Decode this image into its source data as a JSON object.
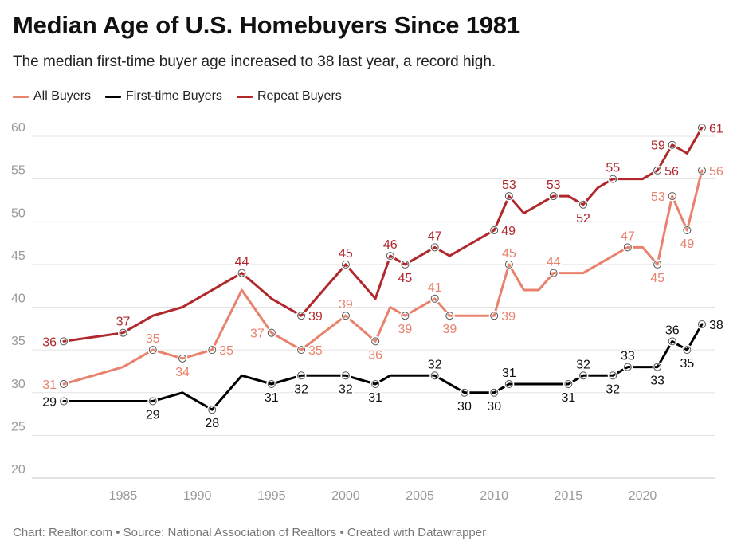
{
  "header": {
    "title": "Median Age of U.S. Homebuyers Since 1981",
    "subtitle": "The median first-time buyer age increased to 38 last year, a record high."
  },
  "footer": {
    "credit": "Chart: Realtor.com • Source: National Association of Realtors • Created with Datawrapper"
  },
  "chart_data": {
    "type": "line",
    "title": "Median Age of U.S. Homebuyers Since 1981",
    "subtitle": "The median first-time buyer age increased to 38 last year, a record high.",
    "xlabel": "",
    "ylabel": "",
    "xlim": [
      1981,
      2024
    ],
    "ylim": [
      20,
      62
    ],
    "x_ticks": [
      1985,
      1990,
      1995,
      2000,
      2005,
      2010,
      2015,
      2020
    ],
    "y_ticks": [
      20,
      25,
      30,
      35,
      40,
      45,
      50,
      55,
      60
    ],
    "grid": true,
    "legend": "top-left",
    "series": [
      {
        "name": "All Buyers",
        "color": "#e8826d",
        "points": [
          [
            1981,
            31
          ],
          [
            1985,
            33
          ],
          [
            1987,
            35
          ],
          [
            1989,
            34
          ],
          [
            1991,
            35
          ],
          [
            1993,
            42
          ],
          [
            1995,
            37
          ],
          [
            1997,
            35
          ],
          [
            2000,
            39
          ],
          [
            2002,
            36
          ],
          [
            2003,
            40
          ],
          [
            2004,
            39
          ],
          [
            2006,
            41
          ],
          [
            2007,
            39
          ],
          [
            2010,
            39
          ],
          [
            2011,
            45
          ],
          [
            2012,
            42
          ],
          [
            2013,
            42
          ],
          [
            2014,
            44
          ],
          [
            2016,
            44
          ],
          [
            2019,
            47
          ],
          [
            2020,
            47
          ],
          [
            2021,
            45
          ],
          [
            2022,
            53
          ],
          [
            2023,
            49
          ],
          [
            2024,
            56
          ]
        ],
        "labels": [
          {
            "x": 1981,
            "y": 31,
            "text": "31",
            "pos": "left"
          },
          {
            "x": 1987,
            "y": 35,
            "text": "35",
            "pos": "above"
          },
          {
            "x": 1989,
            "y": 34,
            "text": "34",
            "pos": "below"
          },
          {
            "x": 1991,
            "y": 35,
            "text": "35",
            "pos": "right"
          },
          {
            "x": 1995,
            "y": 37,
            "text": "37",
            "pos": "left"
          },
          {
            "x": 1997,
            "y": 35,
            "text": "35",
            "pos": "right"
          },
          {
            "x": 2000,
            "y": 39,
            "text": "39",
            "pos": "above"
          },
          {
            "x": 2002,
            "y": 36,
            "text": "36",
            "pos": "below"
          },
          {
            "x": 2004,
            "y": 39,
            "text": "39",
            "pos": "below"
          },
          {
            "x": 2006,
            "y": 41,
            "text": "41",
            "pos": "above"
          },
          {
            "x": 2007,
            "y": 39,
            "text": "39",
            "pos": "below"
          },
          {
            "x": 2010,
            "y": 39,
            "text": "39",
            "pos": "right"
          },
          {
            "x": 2011,
            "y": 45,
            "text": "45",
            "pos": "above"
          },
          {
            "x": 2014,
            "y": 44,
            "text": "44",
            "pos": "above"
          },
          {
            "x": 2019,
            "y": 47,
            "text": "47",
            "pos": "above"
          },
          {
            "x": 2021,
            "y": 45,
            "text": "45",
            "pos": "below"
          },
          {
            "x": 2022,
            "y": 53,
            "text": "53",
            "pos": "left"
          },
          {
            "x": 2023,
            "y": 49,
            "text": "49",
            "pos": "below"
          },
          {
            "x": 2024,
            "y": 56,
            "text": "56",
            "pos": "right"
          }
        ]
      },
      {
        "name": "First-time Buyers",
        "color": "#000000",
        "points": [
          [
            1981,
            29
          ],
          [
            1987,
            29
          ],
          [
            1989,
            30
          ],
          [
            1991,
            28
          ],
          [
            1993,
            32
          ],
          [
            1995,
            31
          ],
          [
            1997,
            32
          ],
          [
            2000,
            32
          ],
          [
            2002,
            31
          ],
          [
            2003,
            32
          ],
          [
            2006,
            32
          ],
          [
            2008,
            30
          ],
          [
            2010,
            30
          ],
          [
            2011,
            31
          ],
          [
            2015,
            31
          ],
          [
            2016,
            32
          ],
          [
            2018,
            32
          ],
          [
            2019,
            33
          ],
          [
            2021,
            33
          ],
          [
            2022,
            36
          ],
          [
            2023,
            35
          ],
          [
            2024,
            38
          ]
        ],
        "labels": [
          {
            "x": 1981,
            "y": 29,
            "text": "29",
            "pos": "left"
          },
          {
            "x": 1987,
            "y": 29,
            "text": "29",
            "pos": "below"
          },
          {
            "x": 1991,
            "y": 28,
            "text": "28",
            "pos": "below"
          },
          {
            "x": 1995,
            "y": 31,
            "text": "31",
            "pos": "below"
          },
          {
            "x": 1997,
            "y": 32,
            "text": "32",
            "pos": "below"
          },
          {
            "x": 2000,
            "y": 32,
            "text": "32",
            "pos": "below"
          },
          {
            "x": 2002,
            "y": 31,
            "text": "31",
            "pos": "below"
          },
          {
            "x": 2006,
            "y": 32,
            "text": "32",
            "pos": "above"
          },
          {
            "x": 2008,
            "y": 30,
            "text": "30",
            "pos": "below"
          },
          {
            "x": 2010,
            "y": 30,
            "text": "30",
            "pos": "below"
          },
          {
            "x": 2011,
            "y": 31,
            "text": "31",
            "pos": "above"
          },
          {
            "x": 2015,
            "y": 31,
            "text": "31",
            "pos": "below"
          },
          {
            "x": 2016,
            "y": 32,
            "text": "32",
            "pos": "above"
          },
          {
            "x": 2018,
            "y": 32,
            "text": "32",
            "pos": "below"
          },
          {
            "x": 2019,
            "y": 33,
            "text": "33",
            "pos": "above"
          },
          {
            "x": 2021,
            "y": 33,
            "text": "33",
            "pos": "below"
          },
          {
            "x": 2022,
            "y": 36,
            "text": "36",
            "pos": "above"
          },
          {
            "x": 2023,
            "y": 35,
            "text": "35",
            "pos": "below"
          },
          {
            "x": 2024,
            "y": 38,
            "text": "38",
            "pos": "right"
          }
        ]
      },
      {
        "name": "Repeat Buyers",
        "color": "#b0282c",
        "points": [
          [
            1981,
            36
          ],
          [
            1985,
            37
          ],
          [
            1987,
            39
          ],
          [
            1989,
            40
          ],
          [
            1993,
            44
          ],
          [
            1995,
            41
          ],
          [
            1997,
            39
          ],
          [
            2000,
            45
          ],
          [
            2002,
            41
          ],
          [
            2003,
            46
          ],
          [
            2004,
            45
          ],
          [
            2006,
            47
          ],
          [
            2007,
            46
          ],
          [
            2010,
            49
          ],
          [
            2011,
            53
          ],
          [
            2012,
            51
          ],
          [
            2014,
            53
          ],
          [
            2015,
            53
          ],
          [
            2016,
            52
          ],
          [
            2017,
            54
          ],
          [
            2018,
            55
          ],
          [
            2020,
            55
          ],
          [
            2021,
            56
          ],
          [
            2022,
            59
          ],
          [
            2023,
            58
          ],
          [
            2024,
            61
          ]
        ],
        "labels": [
          {
            "x": 1981,
            "y": 36,
            "text": "36",
            "pos": "left"
          },
          {
            "x": 1985,
            "y": 37,
            "text": "37",
            "pos": "above"
          },
          {
            "x": 1993,
            "y": 44,
            "text": "44",
            "pos": "above"
          },
          {
            "x": 1997,
            "y": 39,
            "text": "39",
            "pos": "right"
          },
          {
            "x": 2000,
            "y": 45,
            "text": "45",
            "pos": "above"
          },
          {
            "x": 2003,
            "y": 46,
            "text": "46",
            "pos": "above"
          },
          {
            "x": 2004,
            "y": 45,
            "text": "45",
            "pos": "below"
          },
          {
            "x": 2006,
            "y": 47,
            "text": "47",
            "pos": "above"
          },
          {
            "x": 2010,
            "y": 49,
            "text": "49",
            "pos": "right"
          },
          {
            "x": 2011,
            "y": 53,
            "text": "53",
            "pos": "above"
          },
          {
            "x": 2014,
            "y": 53,
            "text": "53",
            "pos": "above"
          },
          {
            "x": 2016,
            "y": 52,
            "text": "52",
            "pos": "below"
          },
          {
            "x": 2018,
            "y": 55,
            "text": "55",
            "pos": "above"
          },
          {
            "x": 2021,
            "y": 56,
            "text": "56",
            "pos": "right"
          },
          {
            "x": 2022,
            "y": 59,
            "text": "59",
            "pos": "left"
          },
          {
            "x": 2024,
            "y": 61,
            "text": "61",
            "pos": "right"
          }
        ]
      }
    ]
  }
}
